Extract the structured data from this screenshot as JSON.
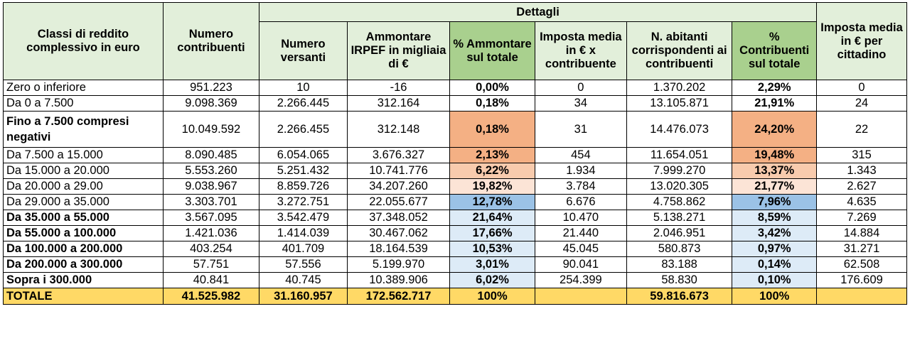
{
  "headers": {
    "classi": "Classi di reddito complessivo in euro",
    "numero_contribuenti": "Numero contribuenti",
    "dettagli": "Dettagli",
    "numero_versanti": "Numero versanti",
    "ammontare": "Ammontare IRPEF in migliaia di €",
    "perc_ammontare": "% Ammontare sul totale",
    "imposta_media_contribuente": "Imposta media in € x contribuente",
    "abitanti": "N. abitanti corrispondenti ai contribuenti",
    "perc_contribuenti": "% Contribuenti sul totale",
    "imposta_media_cittadino": "Imposta media in € per cittadino"
  },
  "rows": [
    {
      "label": "Zero o inferiore",
      "contribuenti": "951.223",
      "versanti": "10",
      "ammontare": "-16",
      "perc_ammontare": "0,00%",
      "imposta_media": "0",
      "abitanti": "1.370.202",
      "perc_contribuenti": "2,29%",
      "imposta_cittadino": "0"
    },
    {
      "label": "Da 0 a 7.500",
      "contribuenti": "9.098.369",
      "versanti": "2.266.445",
      "ammontare": "312.164",
      "perc_ammontare": "0,18%",
      "imposta_media": "34",
      "abitanti": "13.105.871",
      "perc_contribuenti": "21,91%",
      "imposta_cittadino": "24"
    },
    {
      "label": "Fino a 7.500 compresi negativi",
      "contribuenti": "10.049.592",
      "versanti": "2.266.455",
      "ammontare": "312.148",
      "perc_ammontare": "0,18%",
      "imposta_media": "31",
      "abitanti": "14.476.073",
      "perc_contribuenti": "24,20%",
      "imposta_cittadino": "22"
    },
    {
      "label": "Da 7.500 a 15.000",
      "contribuenti": "8.090.485",
      "versanti": "6.054.065",
      "ammontare": "3.676.327",
      "perc_ammontare": "2,13%",
      "imposta_media": "454",
      "abitanti": "11.654.051",
      "perc_contribuenti": "19,48%",
      "imposta_cittadino": "315"
    },
    {
      "label": "Da 15.000 a 20.000",
      "contribuenti": "5.553.260",
      "versanti": "5.251.432",
      "ammontare": "10.741.776",
      "perc_ammontare": "6,22%",
      "imposta_media": "1.934",
      "abitanti": "7.999.270",
      "perc_contribuenti": "13,37%",
      "imposta_cittadino": "1.343"
    },
    {
      "label": "Da 20.000 a 29.00",
      "contribuenti": "9.038.967",
      "versanti": "8.859.726",
      "ammontare": "34.207.260",
      "perc_ammontare": "19,82%",
      "imposta_media": "3.784",
      "abitanti": "13.020.305",
      "perc_contribuenti": "21,77%",
      "imposta_cittadino": "2.627"
    },
    {
      "label": "Da 29.000 a 35.000",
      "contribuenti": "3.303.701",
      "versanti": "3.272.751",
      "ammontare": "22.055.677",
      "perc_ammontare": "12,78%",
      "imposta_media": "6.676",
      "abitanti": "4.758.862",
      "perc_contribuenti": "7,96%",
      "imposta_cittadino": "4.635"
    },
    {
      "label": "Da 35.000 a 55.000",
      "contribuenti": "3.567.095",
      "versanti": "3.542.479",
      "ammontare": "37.348.052",
      "perc_ammontare": "21,64%",
      "imposta_media": "10.470",
      "abitanti": "5.138.271",
      "perc_contribuenti": "8,59%",
      "imposta_cittadino": "7.269"
    },
    {
      "label": "Da 55.000 a 100.000",
      "contribuenti": "1.421.036",
      "versanti": "1.414.039",
      "ammontare": "30.467.062",
      "perc_ammontare": "17,66%",
      "imposta_media": "21.440",
      "abitanti": "2.046.951",
      "perc_contribuenti": "3,42%",
      "imposta_cittadino": "14.884"
    },
    {
      "label": "Da 100.000 a 200.000",
      "contribuenti": "403.254",
      "versanti": "401.709",
      "ammontare": "18.164.539",
      "perc_ammontare": "10,53%",
      "imposta_media": "45.045",
      "abitanti": "580.873",
      "perc_contribuenti": "0,97%",
      "imposta_cittadino": "31.271"
    },
    {
      "label": "Da 200.000 a 300.000",
      "contribuenti": "57.751",
      "versanti": "57.556",
      "ammontare": "5.199.970",
      "perc_ammontare": "3,01%",
      "imposta_media": "90.041",
      "abitanti": "83.188",
      "perc_contribuenti": "0,14%",
      "imposta_cittadino": "62.508"
    },
    {
      "label": "Sopra i 300.000",
      "contribuenti": "40.841",
      "versanti": "40.745",
      "ammontare": "10.389.906",
      "perc_ammontare": "6,02%",
      "imposta_media": "254.399",
      "abitanti": "58.830",
      "perc_contribuenti": "0,10%",
      "imposta_cittadino": "176.609"
    }
  ],
  "totale": {
    "label": "TOTALE",
    "contribuenti": "41.525.982",
    "versanti": "31.160.957",
    "ammontare": "172.562.717",
    "perc_ammontare": "100%",
    "imposta_media": "",
    "abitanti": "59.816.673",
    "perc_contribuenti": "100%",
    "imposta_cittadino": ""
  },
  "colors": {
    "header_bg": "#e2efda",
    "header_green": "#a9d08e",
    "highlight_orange": "#f4b084",
    "highlight_peach": "#f8cbad",
    "highlight_light": "#fce4d6",
    "highlight_blue": "#9bc2e6",
    "highlight_pale_blue": "#ddebf7",
    "total_yellow": "#ffd966"
  }
}
